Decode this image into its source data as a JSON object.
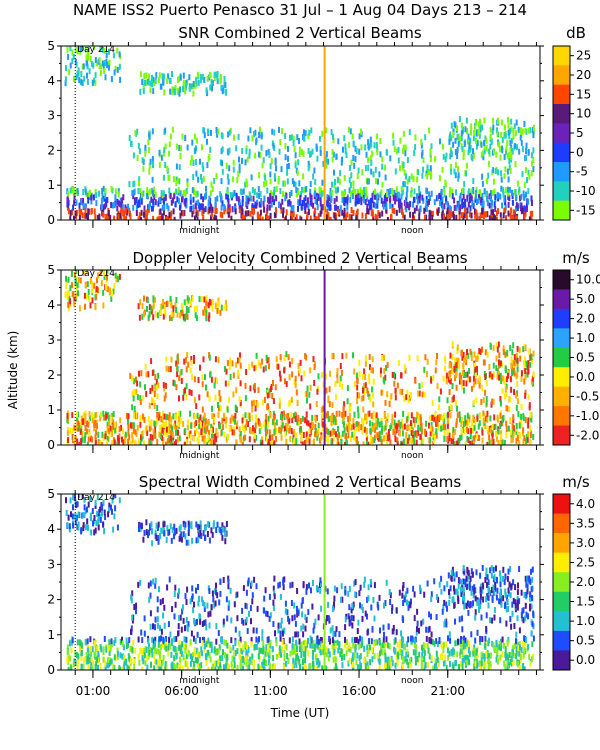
{
  "figure_title": "NAME ISS2 Puerto Penasco   31 Jul –   1 Aug 04 Days 213 – 214",
  "shared": {
    "ylabel": "Altitude (km)",
    "xlabel": "Time (UT)",
    "x_ticks": [
      "01:00",
      "06:00",
      "11:00",
      "16:00",
      "21:00"
    ],
    "x_tick_hours": [
      1,
      6,
      11,
      16,
      21
    ],
    "x_range_hours": [
      -0.8,
      26.2
    ],
    "midnight_label": "midnight",
    "noon_label": "noon",
    "day_label": "Day 214"
  },
  "chart_data": [
    {
      "type": "heatmap",
      "title": "SNR Combined 2 Vertical Beams",
      "units": "dB",
      "ylim": [
        0,
        5
      ],
      "yticks": [
        "0",
        "1",
        "2",
        "3",
        "4",
        "5"
      ],
      "colorbar": {
        "labels": [
          "25",
          "20",
          "15",
          "10",
          "5",
          "0",
          "-5",
          "-10",
          "-15"
        ],
        "colors": [
          "#ffd700",
          "#ffa500",
          "#ff4500",
          "#5a1a7a",
          "#6a22b8",
          "#1e3cff",
          "#1f9bff",
          "#22d0c0",
          "#7cfc00"
        ]
      }
    },
    {
      "type": "heatmap",
      "title": "Doppler Velocity Combined 2 Vertical Beams",
      "units": "m/s",
      "ylim": [
        0,
        5
      ],
      "yticks": [
        "0",
        "1",
        "2",
        "3",
        "4",
        "5"
      ],
      "colorbar": {
        "labels": [
          "10.0",
          "5.0",
          "2.0",
          "1.0",
          "0.5",
          "0.0",
          "-0.5",
          "-1.0",
          "-2.0"
        ],
        "colors": [
          "#2a0a2a",
          "#6a1aa8",
          "#1f3cff",
          "#2ba3ff",
          "#22cc44",
          "#ffee00",
          "#ffb000",
          "#ff7700",
          "#ee2222"
        ]
      }
    },
    {
      "type": "heatmap",
      "title": "Spectral Width Combined 2 Vertical Beams",
      "units": "m/s",
      "ylim": [
        0,
        5
      ],
      "yticks": [
        "0",
        "1",
        "2",
        "3",
        "4",
        "5"
      ],
      "colorbar": {
        "labels": [
          "4.0",
          "3.5",
          "3.0",
          "2.5",
          "2.0",
          "1.5",
          "1.0",
          "0.5",
          "0.0"
        ],
        "colors": [
          "#ee1111",
          "#ff6600",
          "#ffa500",
          "#ffee00",
          "#88ee22",
          "#22cc66",
          "#22c0d0",
          "#1f4cff",
          "#4a1a9a"
        ]
      }
    }
  ]
}
